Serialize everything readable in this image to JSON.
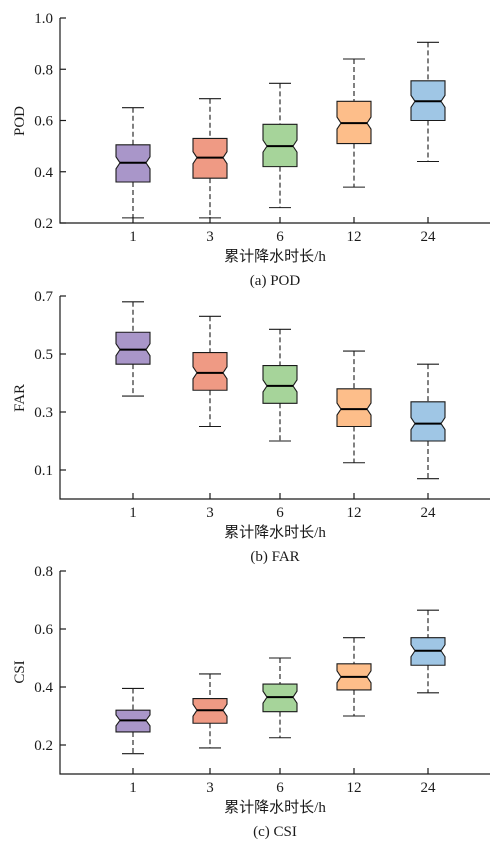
{
  "chart_data": [
    {
      "type": "box",
      "caption": "(a) POD",
      "xlabel": "累计降水时长/h",
      "ylabel": "POD",
      "categories": [
        "1",
        "3",
        "6",
        "12",
        "24"
      ],
      "ylim": [
        0.2,
        1.0
      ],
      "yticks": [
        "0.2",
        "0.4",
        "0.6",
        "0.8",
        "1.0"
      ],
      "boxes": [
        {
          "min": 0.22,
          "q1": 0.36,
          "median": 0.435,
          "q3": 0.505,
          "max": 0.65
        },
        {
          "min": 0.22,
          "q1": 0.375,
          "median": 0.455,
          "q3": 0.53,
          "max": 0.685
        },
        {
          "min": 0.26,
          "q1": 0.42,
          "median": 0.5,
          "q3": 0.585,
          "max": 0.745
        },
        {
          "min": 0.34,
          "q1": 0.51,
          "median": 0.59,
          "q3": 0.675,
          "max": 0.84
        },
        {
          "min": 0.44,
          "q1": 0.6,
          "median": 0.675,
          "q3": 0.755,
          "max": 0.905
        }
      ]
    },
    {
      "type": "box",
      "caption": "(b) FAR",
      "xlabel": "累计降水时长/h",
      "ylabel": "FAR",
      "categories": [
        "1",
        "3",
        "6",
        "12",
        "24"
      ],
      "ylim": [
        0.0,
        0.7
      ],
      "yticks": [
        "0.1",
        "0.3",
        "0.5",
        "0.7"
      ],
      "boxes": [
        {
          "min": 0.355,
          "q1": 0.465,
          "median": 0.515,
          "q3": 0.575,
          "max": 0.68
        },
        {
          "min": 0.25,
          "q1": 0.375,
          "median": 0.435,
          "q3": 0.505,
          "max": 0.63
        },
        {
          "min": 0.2,
          "q1": 0.33,
          "median": 0.39,
          "q3": 0.46,
          "max": 0.585
        },
        {
          "min": 0.125,
          "q1": 0.25,
          "median": 0.31,
          "q3": 0.38,
          "max": 0.51
        },
        {
          "min": 0.07,
          "q1": 0.2,
          "median": 0.26,
          "q3": 0.335,
          "max": 0.465
        }
      ]
    },
    {
      "type": "box",
      "caption": "(c) CSI",
      "xlabel": "累计降水时长/h",
      "ylabel": "CSI",
      "categories": [
        "1",
        "3",
        "6",
        "12",
        "24"
      ],
      "ylim": [
        0.1,
        0.8
      ],
      "yticks": [
        "0.2",
        "0.4",
        "0.6",
        "0.8"
      ],
      "boxes": [
        {
          "min": 0.17,
          "q1": 0.245,
          "median": 0.285,
          "q3": 0.32,
          "max": 0.395
        },
        {
          "min": 0.19,
          "q1": 0.275,
          "median": 0.32,
          "q3": 0.36,
          "max": 0.445
        },
        {
          "min": 0.225,
          "q1": 0.315,
          "median": 0.365,
          "q3": 0.41,
          "max": 0.5
        },
        {
          "min": 0.3,
          "q1": 0.39,
          "median": 0.435,
          "q3": 0.48,
          "max": 0.57
        },
        {
          "min": 0.38,
          "q1": 0.475,
          "median": 0.525,
          "q3": 0.57,
          "max": 0.665
        }
      ]
    }
  ],
  "box_colors": [
    "#a996c9",
    "#ef9a84",
    "#a6d49a",
    "#fdbe8a",
    "#9fc6e5"
  ],
  "box_edge_color": "#1a1a1a"
}
